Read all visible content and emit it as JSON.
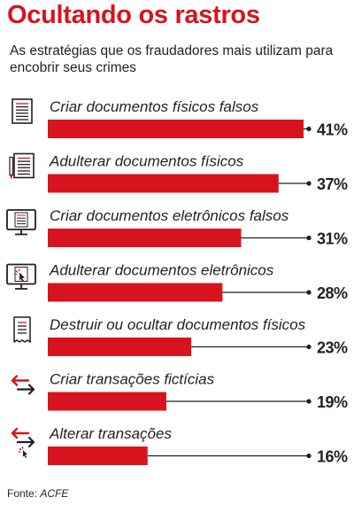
{
  "title": "Ocultando os rastros",
  "subtitle": "As estratégias que os fraudadores mais utilizam para encobrir seus crimes",
  "source": {
    "prefix": "Fonte:",
    "name": "ACFE"
  },
  "colors": {
    "bar": "#d7141e",
    "title": "#d7141e",
    "text": "#231f20"
  },
  "chart_data": {
    "type": "bar",
    "orientation": "horizontal",
    "title": "Ocultando os rastros",
    "subtitle": "As estratégias que os fraudadores mais utilizam para encobrir seus crimes",
    "xlabel": "",
    "ylabel": "",
    "xlim": [
      0,
      41
    ],
    "grid": false,
    "legend": "none",
    "categories": [
      "Criar documentos físicos falsos",
      "Adulterar documentos físicos",
      "Criar documentos eletrônicos falsos",
      "Adulterar documentos eletrônicos",
      "Destruir ou ocultar documentos físicos",
      "Criar transações fictícias",
      "Alterar transações"
    ],
    "values": [
      41,
      37,
      31,
      28,
      23,
      19,
      16
    ],
    "value_labels": [
      "41%",
      "37%",
      "31%",
      "28%",
      "23%",
      "19%",
      "16%"
    ],
    "icons": [
      "document-icon",
      "document-pen-icon",
      "monitor-document-icon",
      "monitor-cursor-icon",
      "receipt-icon",
      "exchange-arrows-icon",
      "exchange-cursor-icon"
    ]
  }
}
